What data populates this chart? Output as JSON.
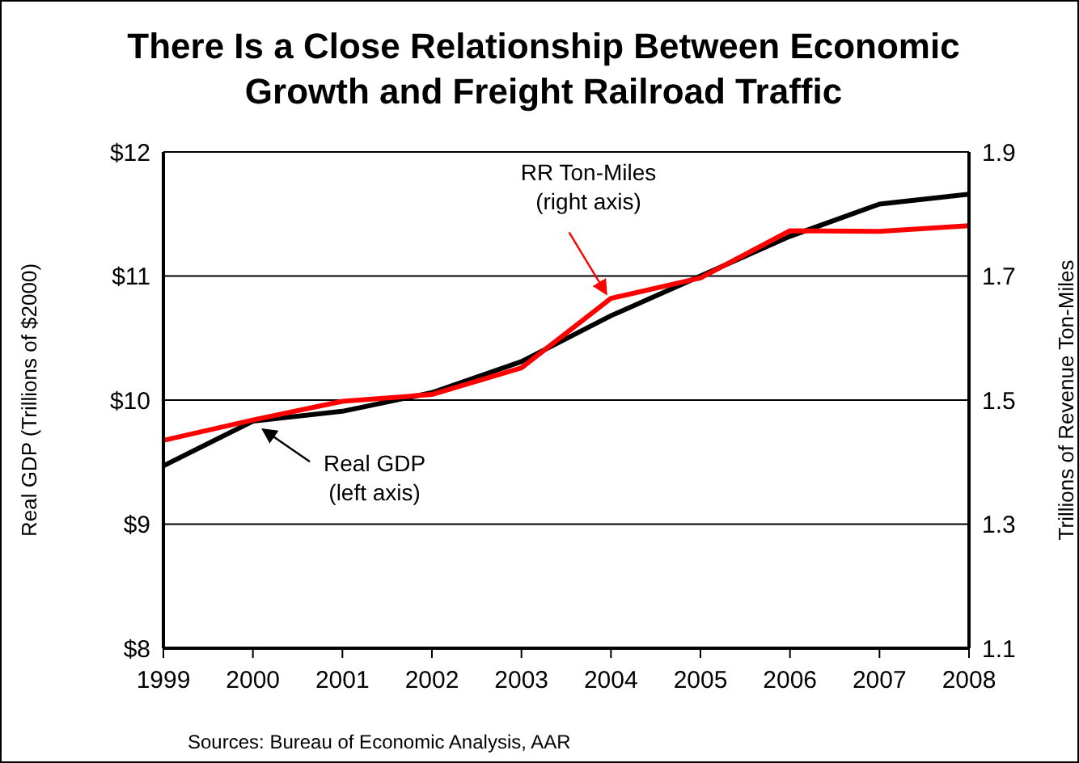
{
  "chart_data": {
    "type": "line",
    "title": "There Is a Close Relationship Between Economic Growth and Freight Railroad Traffic",
    "ylabel": "Real GDP (Trillions of $2000)",
    "y2label": "Trillions of Revenue Ton-Miles",
    "categories": [
      "1999",
      "2000",
      "2001",
      "2002",
      "2003",
      "2004",
      "2005",
      "2006",
      "2007",
      "2008"
    ],
    "series": [
      {
        "color": "#000000",
        "values": [
          9.47,
          9.83,
          9.91,
          10.06,
          10.31,
          10.68,
          11.0,
          11.32,
          11.58,
          11.66
        ]
      },
      {
        "color": "#ff0000",
        "axis": "y2",
        "values": [
          1.435,
          1.468,
          1.498,
          1.509,
          1.552,
          1.664,
          1.697,
          1.773,
          1.772,
          1.781
        ]
      }
    ],
    "ylim": [
      8,
      12
    ],
    "yticks": [
      {
        "value": 8,
        "label": "$8"
      },
      {
        "value": 9,
        "label": "$9"
      },
      {
        "value": 10,
        "label": "$10"
      },
      {
        "value": 11,
        "label": "$11"
      },
      {
        "value": 12,
        "label": "$12"
      }
    ],
    "y2lim": [
      1.1,
      1.9
    ],
    "y2ticks": [
      1.1,
      1.3,
      1.5,
      1.7,
      1.9
    ],
    "grid": "y",
    "marker": "none",
    "line_style": "solid",
    "annotations": [
      {
        "text": "Real GDP\n(left axis)",
        "x": "2000",
        "y": 9.83
      },
      {
        "text": "RR Ton-Miles\n(right axis)",
        "x": "2004",
        "y": 10.8
      },
      "Sources: Bureau of Economic Analysis, AAR"
    ]
  }
}
